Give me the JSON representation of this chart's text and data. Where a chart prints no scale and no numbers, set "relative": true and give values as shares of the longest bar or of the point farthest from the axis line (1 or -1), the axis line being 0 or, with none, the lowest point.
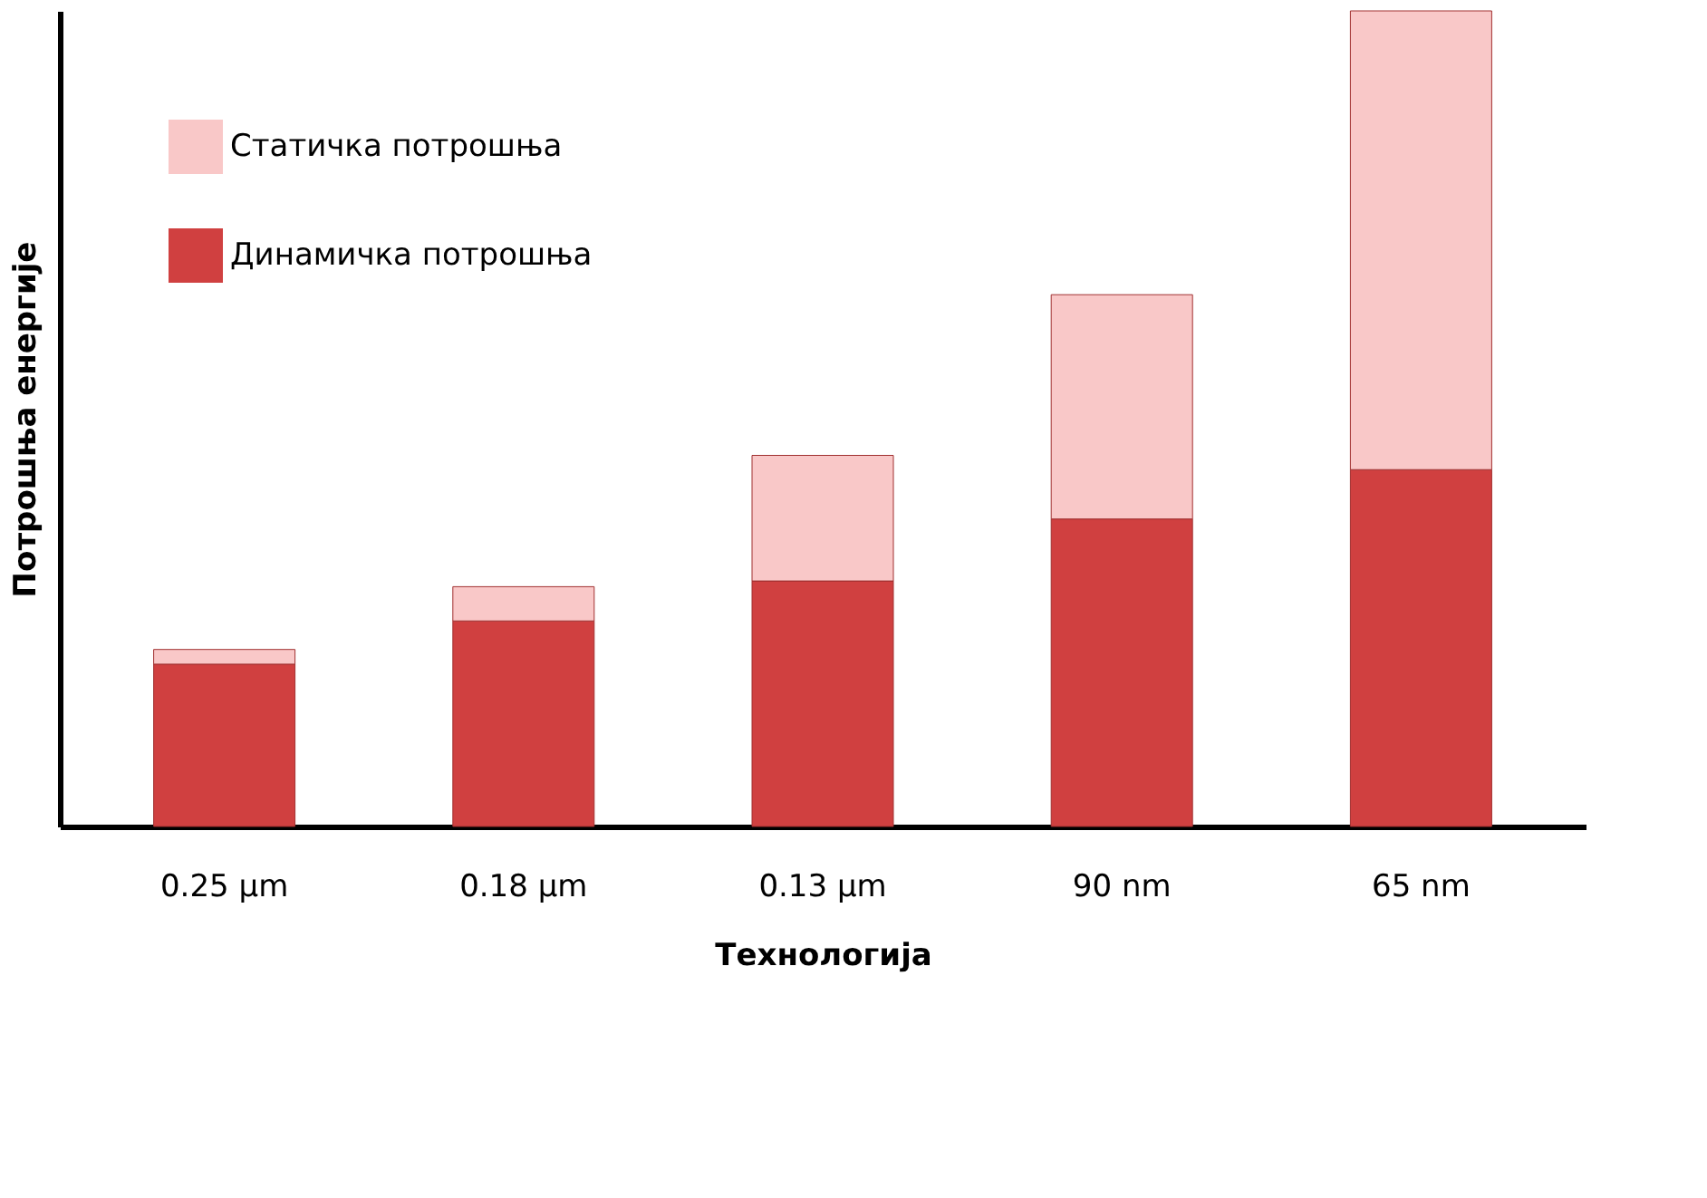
{
  "chart_data": {
    "type": "bar",
    "stacked": true,
    "relative": true,
    "xlabel": "Технологија",
    "ylabel": "Потрошња енергије",
    "categories": [
      "0.25 µm",
      "0.18 µm",
      "0.13 µm",
      "90 nm",
      "65 nm"
    ],
    "series": [
      {
        "name": "Динамичка потрошња",
        "color": "#d04040",
        "values": [
          0.199,
          0.252,
          0.301,
          0.377,
          0.4375
        ]
      },
      {
        "name": "Статичка потрошња",
        "color": "#f9c8c8",
        "values": [
          0.018,
          0.042,
          0.154,
          0.275,
          0.5625
        ]
      }
    ],
    "legend": "top left",
    "grid": false
  }
}
